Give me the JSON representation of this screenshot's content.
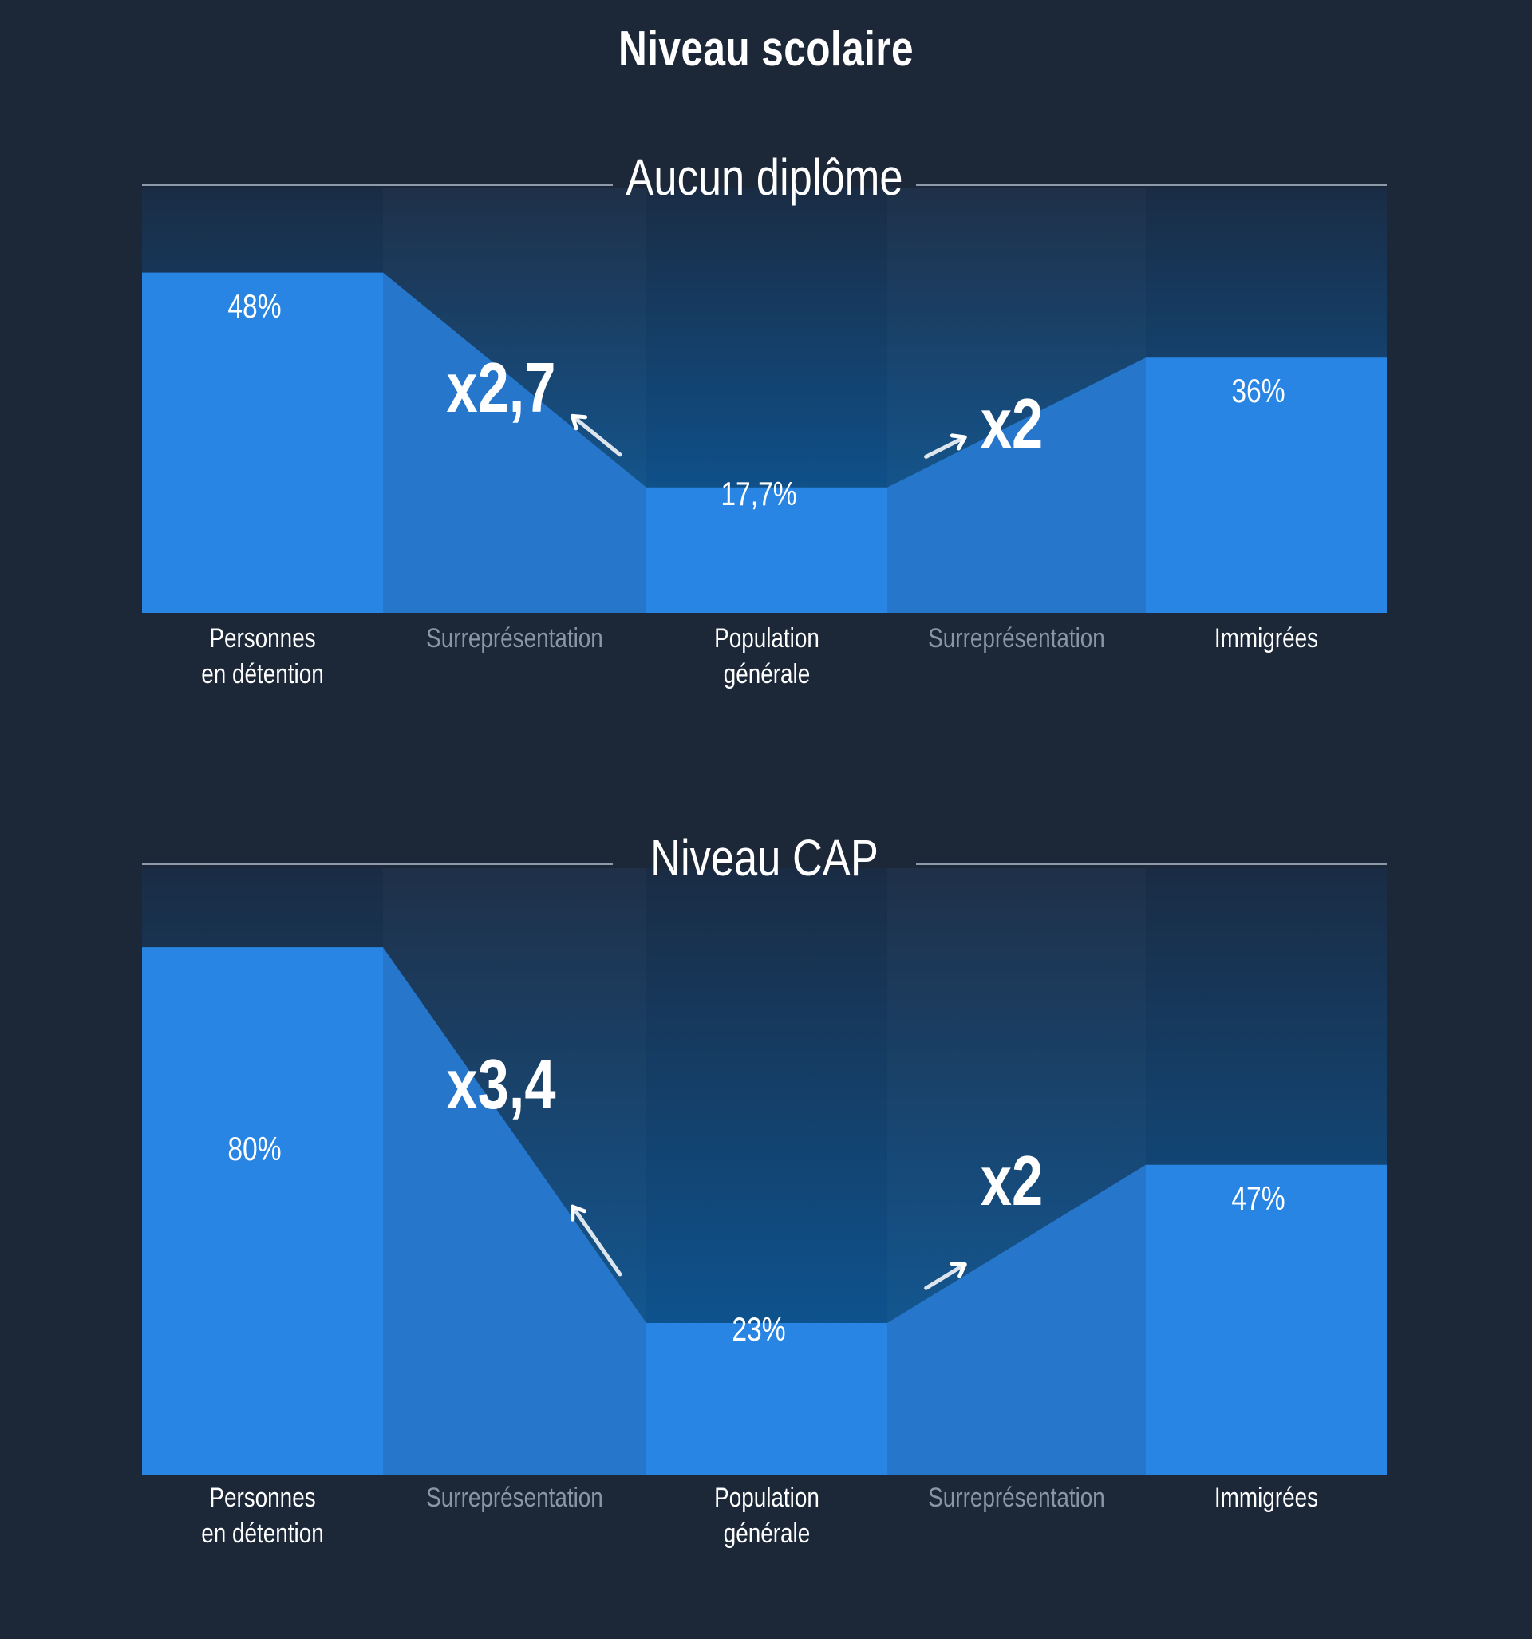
{
  "title": "Niveau scolaire",
  "colors": {
    "background": "#1c2737",
    "bar": "#2885e3",
    "transition": "#2677cc",
    "muted_label": "#8a96a6",
    "rule": "#8d9aab"
  },
  "chart_data": [
    {
      "type": "bar",
      "title": "Aucun diplôme",
      "ylim": [
        0,
        60
      ],
      "categories": [
        "Personnes\nen détention",
        "Population\ngénérale",
        "Immigrées"
      ],
      "values": [
        48,
        17.7,
        36
      ],
      "value_labels": [
        "48%",
        "17,7%",
        "36%"
      ],
      "transition_label": "Surreprésentation",
      "factors": [
        "x2,7",
        "x2"
      ]
    },
    {
      "type": "bar",
      "title": "Niveau CAP",
      "ylim": [
        0,
        92
      ],
      "categories": [
        "Personnes\nen détention",
        "Population\ngénérale",
        "Immigrées"
      ],
      "values": [
        80,
        23,
        47
      ],
      "value_labels": [
        "80%",
        "23%",
        "47%"
      ],
      "transition_label": "Surreprésentation",
      "factors": [
        "x3,4",
        "x2"
      ]
    }
  ]
}
